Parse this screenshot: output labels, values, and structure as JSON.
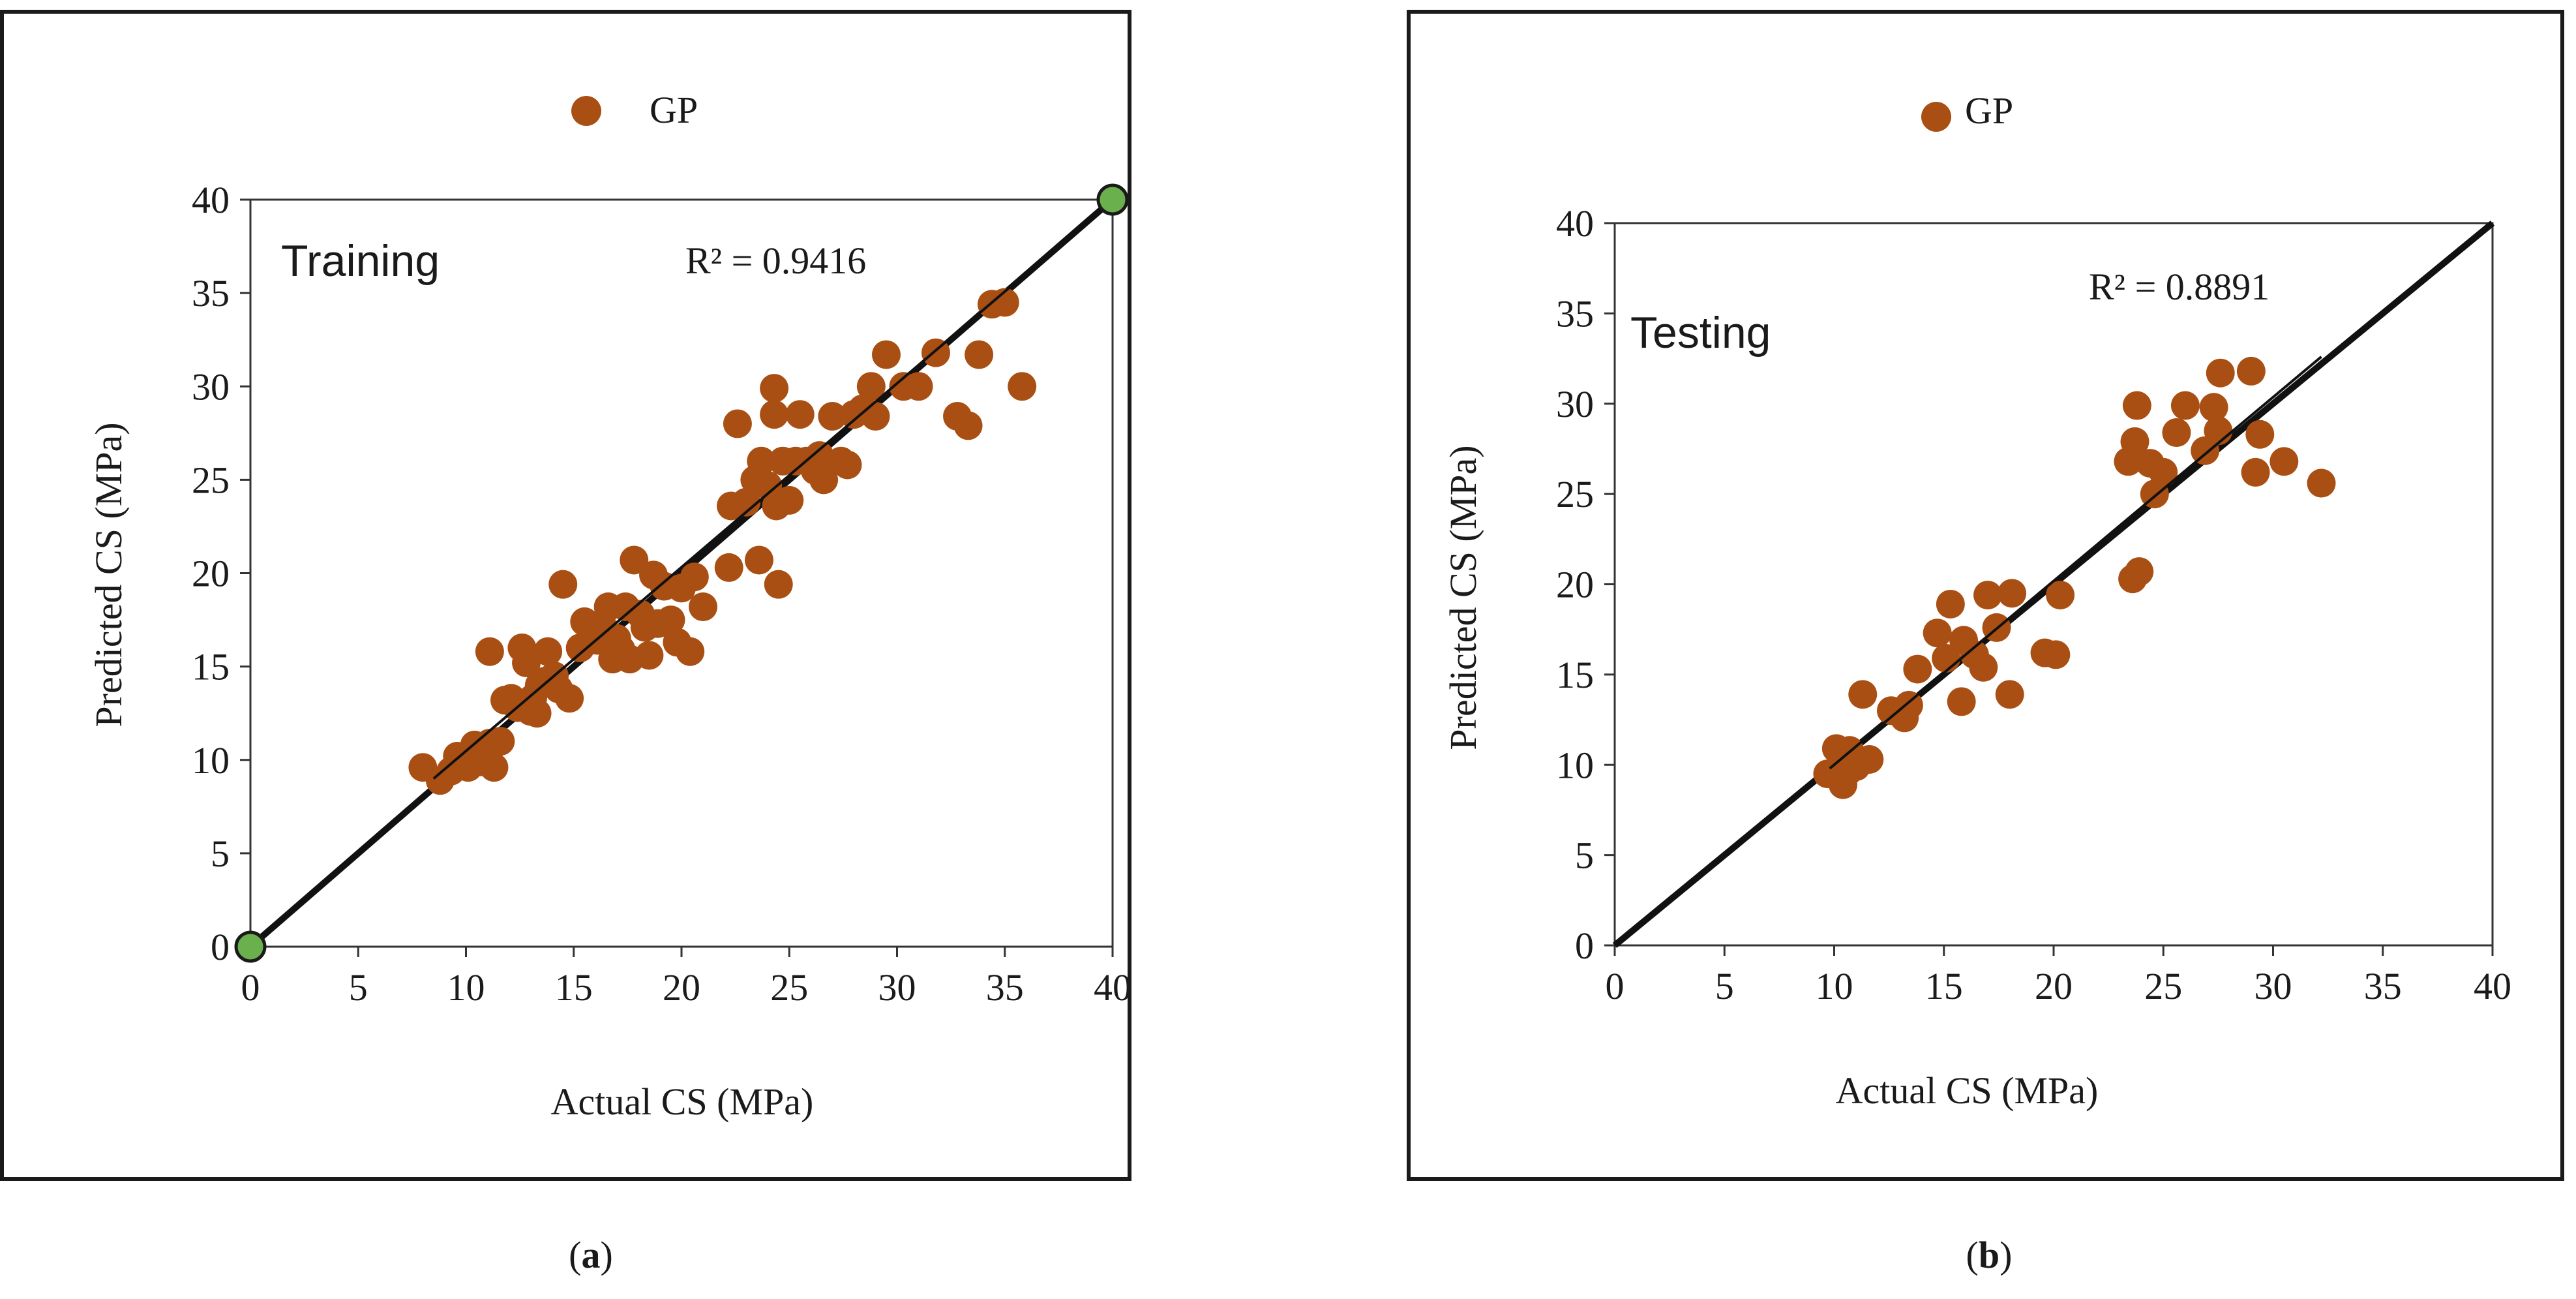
{
  "chart_data": [
    {
      "type": "scatter",
      "panel_label": "a",
      "legend": "GP",
      "inner_label": "Training",
      "r2_label": "R² = 0.9416",
      "xlabel": "Actual CS (MPa)",
      "ylabel": "Predicted CS (MPa)",
      "xlim": [
        0,
        40
      ],
      "ylim": [
        0,
        40
      ],
      "xticks": [
        "0",
        "5",
        "10",
        "15",
        "20",
        "25",
        "30",
        "35",
        "40"
      ],
      "yticks": [
        "0",
        "5",
        "10",
        "15",
        "20",
        "25",
        "30",
        "35",
        "40"
      ],
      "colors": {
        "points": "#a94f13",
        "endpoints": "#6ab04c",
        "line": "#111111"
      },
      "reference_line": [
        [
          0,
          0
        ],
        [
          40,
          40
        ]
      ],
      "trend_line": [
        [
          8.5,
          9
        ],
        [
          40,
          40
        ]
      ],
      "endpoints": [
        [
          0,
          0
        ],
        [
          40,
          40
        ]
      ],
      "points": [
        [
          8,
          9.6
        ],
        [
          8.8,
          8.9
        ],
        [
          9.3,
          9.4
        ],
        [
          9.6,
          10.2
        ],
        [
          10.1,
          9.6
        ],
        [
          10.4,
          10.8
        ],
        [
          10.7,
          9.9
        ],
        [
          11,
          10.4
        ],
        [
          11.1,
          10.9
        ],
        [
          11.3,
          9.6
        ],
        [
          11.6,
          11
        ],
        [
          11.8,
          13.2
        ],
        [
          11.1,
          15.8
        ],
        [
          12.1,
          13.3
        ],
        [
          12.4,
          12.8
        ],
        [
          12.6,
          16
        ],
        [
          12.8,
          15.2
        ],
        [
          13,
          12.6
        ],
        [
          13.1,
          13.3
        ],
        [
          13.3,
          12.5
        ],
        [
          13.4,
          14
        ],
        [
          13.6,
          14.2
        ],
        [
          13.8,
          15.8
        ],
        [
          14.1,
          14.5
        ],
        [
          14.3,
          13.8
        ],
        [
          14.5,
          19.4
        ],
        [
          14.8,
          13.3
        ],
        [
          15.3,
          16
        ],
        [
          15.5,
          17.4
        ],
        [
          15.8,
          16.5
        ],
        [
          16.1,
          16.4
        ],
        [
          16.3,
          17.3
        ],
        [
          16.6,
          18.2
        ],
        [
          16.8,
          15.4
        ],
        [
          17,
          16.5
        ],
        [
          17.2,
          15.9
        ],
        [
          17.4,
          18.2
        ],
        [
          17.6,
          15.4
        ],
        [
          17.8,
          20.7
        ],
        [
          18.1,
          17.8
        ],
        [
          18.3,
          17.1
        ],
        [
          18.5,
          15.6
        ],
        [
          18.7,
          19.9
        ],
        [
          18.9,
          17.3
        ],
        [
          19.2,
          19.3
        ],
        [
          19.5,
          17.5
        ],
        [
          19.8,
          16.3
        ],
        [
          20,
          19.2
        ],
        [
          20.4,
          15.8
        ],
        [
          20.6,
          19.8
        ],
        [
          21,
          18.2
        ],
        [
          22.2,
          20.3
        ],
        [
          22.3,
          23.6
        ],
        [
          22.6,
          28
        ],
        [
          23,
          23.8
        ],
        [
          23.4,
          25
        ],
        [
          23.6,
          20.7
        ],
        [
          23.7,
          26
        ],
        [
          24,
          24.7
        ],
        [
          24.3,
          28.5
        ],
        [
          24.3,
          29.9
        ],
        [
          24.4,
          23.6
        ],
        [
          24.5,
          19.4
        ],
        [
          24.7,
          26
        ],
        [
          25,
          23.9
        ],
        [
          25.3,
          26
        ],
        [
          25.5,
          28.5
        ],
        [
          25.8,
          26
        ],
        [
          26.2,
          25.5
        ],
        [
          26.4,
          26.3
        ],
        [
          26.6,
          25
        ],
        [
          27,
          28.4
        ],
        [
          27.4,
          26
        ],
        [
          27.7,
          25.8
        ],
        [
          28,
          28.5
        ],
        [
          28.4,
          28.8
        ],
        [
          28.8,
          30
        ],
        [
          29,
          28.4
        ],
        [
          29.5,
          31.7
        ],
        [
          30.3,
          30
        ],
        [
          31,
          30
        ],
        [
          31.8,
          31.8
        ],
        [
          32.8,
          28.4
        ],
        [
          33.3,
          27.9
        ],
        [
          33.8,
          31.7
        ],
        [
          34.4,
          34.4
        ],
        [
          35,
          34.5
        ],
        [
          35.8,
          30
        ]
      ]
    },
    {
      "type": "scatter",
      "panel_label": "b",
      "legend": "GP",
      "inner_label": "Testing",
      "r2_label": "R² = 0.8891",
      "xlabel": "Actual CS (MPa)",
      "ylabel": "Predicted CS (MPa)",
      "xlim": [
        0,
        40
      ],
      "ylim": [
        0,
        40
      ],
      "xticks": [
        "0",
        "5",
        "10",
        "15",
        "20",
        "25",
        "30",
        "35",
        "40"
      ],
      "yticks": [
        "0",
        "5",
        "10",
        "15",
        "20",
        "25",
        "30",
        "35",
        "40"
      ],
      "colors": {
        "points": "#a94f13",
        "line": "#111111"
      },
      "reference_line": [
        [
          0,
          0
        ],
        [
          40,
          40
        ]
      ],
      "trend_line": [
        [
          9.8,
          9.8
        ],
        [
          32.2,
          32.6
        ]
      ],
      "points": [
        [
          9.7,
          9.5
        ],
        [
          10.1,
          10.9
        ],
        [
          10.3,
          9.3
        ],
        [
          10.4,
          8.9
        ],
        [
          10.6,
          9.6
        ],
        [
          10.7,
          10.8
        ],
        [
          11,
          9.9
        ],
        [
          11.3,
          13.9
        ],
        [
          11.6,
          10.3
        ],
        [
          12.6,
          13
        ],
        [
          13.2,
          12.6
        ],
        [
          13.4,
          13.3
        ],
        [
          13.8,
          15.3
        ],
        [
          14.7,
          17.3
        ],
        [
          15.1,
          15.9
        ],
        [
          15.3,
          18.9
        ],
        [
          15.8,
          13.5
        ],
        [
          15.9,
          16.9
        ],
        [
          16.4,
          16.1
        ],
        [
          16.8,
          15.4
        ],
        [
          17,
          19.4
        ],
        [
          17.4,
          17.6
        ],
        [
          18,
          13.9
        ],
        [
          18.1,
          19.5
        ],
        [
          19.6,
          16.2
        ],
        [
          20.1,
          16.1
        ],
        [
          20.3,
          19.4
        ],
        [
          23.4,
          26.8
        ],
        [
          23.6,
          20.3
        ],
        [
          23.7,
          27.9
        ],
        [
          23.8,
          29.9
        ],
        [
          23.9,
          20.7
        ],
        [
          24.4,
          26.7
        ],
        [
          24.6,
          25
        ],
        [
          25,
          26.2
        ],
        [
          25.6,
          28.4
        ],
        [
          26,
          29.9
        ],
        [
          26.9,
          27.4
        ],
        [
          27.3,
          29.8
        ],
        [
          27.5,
          28.5
        ],
        [
          27.6,
          31.7
        ],
        [
          29,
          31.8
        ],
        [
          29.2,
          26.2
        ],
        [
          29.4,
          28.3
        ],
        [
          30.5,
          26.8
        ],
        [
          32.2,
          25.6
        ]
      ]
    }
  ]
}
